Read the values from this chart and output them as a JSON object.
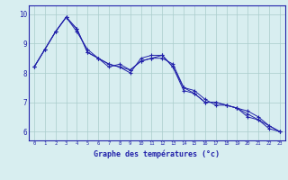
{
  "xlabel": "Graphe des températures (°c)",
  "xlim": [
    -0.5,
    23.5
  ],
  "ylim": [
    5.7,
    10.3
  ],
  "yticks": [
    6,
    7,
    8,
    9,
    10
  ],
  "xticks": [
    0,
    1,
    2,
    3,
    4,
    5,
    6,
    7,
    8,
    9,
    10,
    11,
    12,
    13,
    14,
    15,
    16,
    17,
    18,
    19,
    20,
    21,
    22,
    23
  ],
  "bg_color": "#d8eef0",
  "line_color": "#2222aa",
  "grid_color": "#aacccc",
  "line1": [
    8.2,
    8.8,
    9.4,
    9.9,
    9.5,
    8.7,
    8.5,
    8.3,
    8.2,
    8.0,
    8.5,
    8.6,
    8.6,
    8.2,
    7.4,
    7.3,
    7.0,
    7.0,
    6.9,
    6.8,
    6.5,
    6.4,
    6.1,
    6.0
  ],
  "line2": [
    8.2,
    8.8,
    9.4,
    9.9,
    9.5,
    8.7,
    8.5,
    8.2,
    8.3,
    8.1,
    8.4,
    8.5,
    8.5,
    8.3,
    7.5,
    7.3,
    7.0,
    7.0,
    6.9,
    6.8,
    6.7,
    6.5,
    6.2,
    6.0
  ],
  "line3": [
    8.2,
    8.8,
    9.4,
    9.9,
    9.4,
    8.8,
    8.5,
    8.3,
    8.2,
    8.1,
    8.4,
    8.5,
    8.6,
    8.2,
    7.5,
    7.4,
    7.1,
    6.9,
    6.9,
    6.8,
    6.6,
    6.4,
    6.2,
    6.0
  ]
}
